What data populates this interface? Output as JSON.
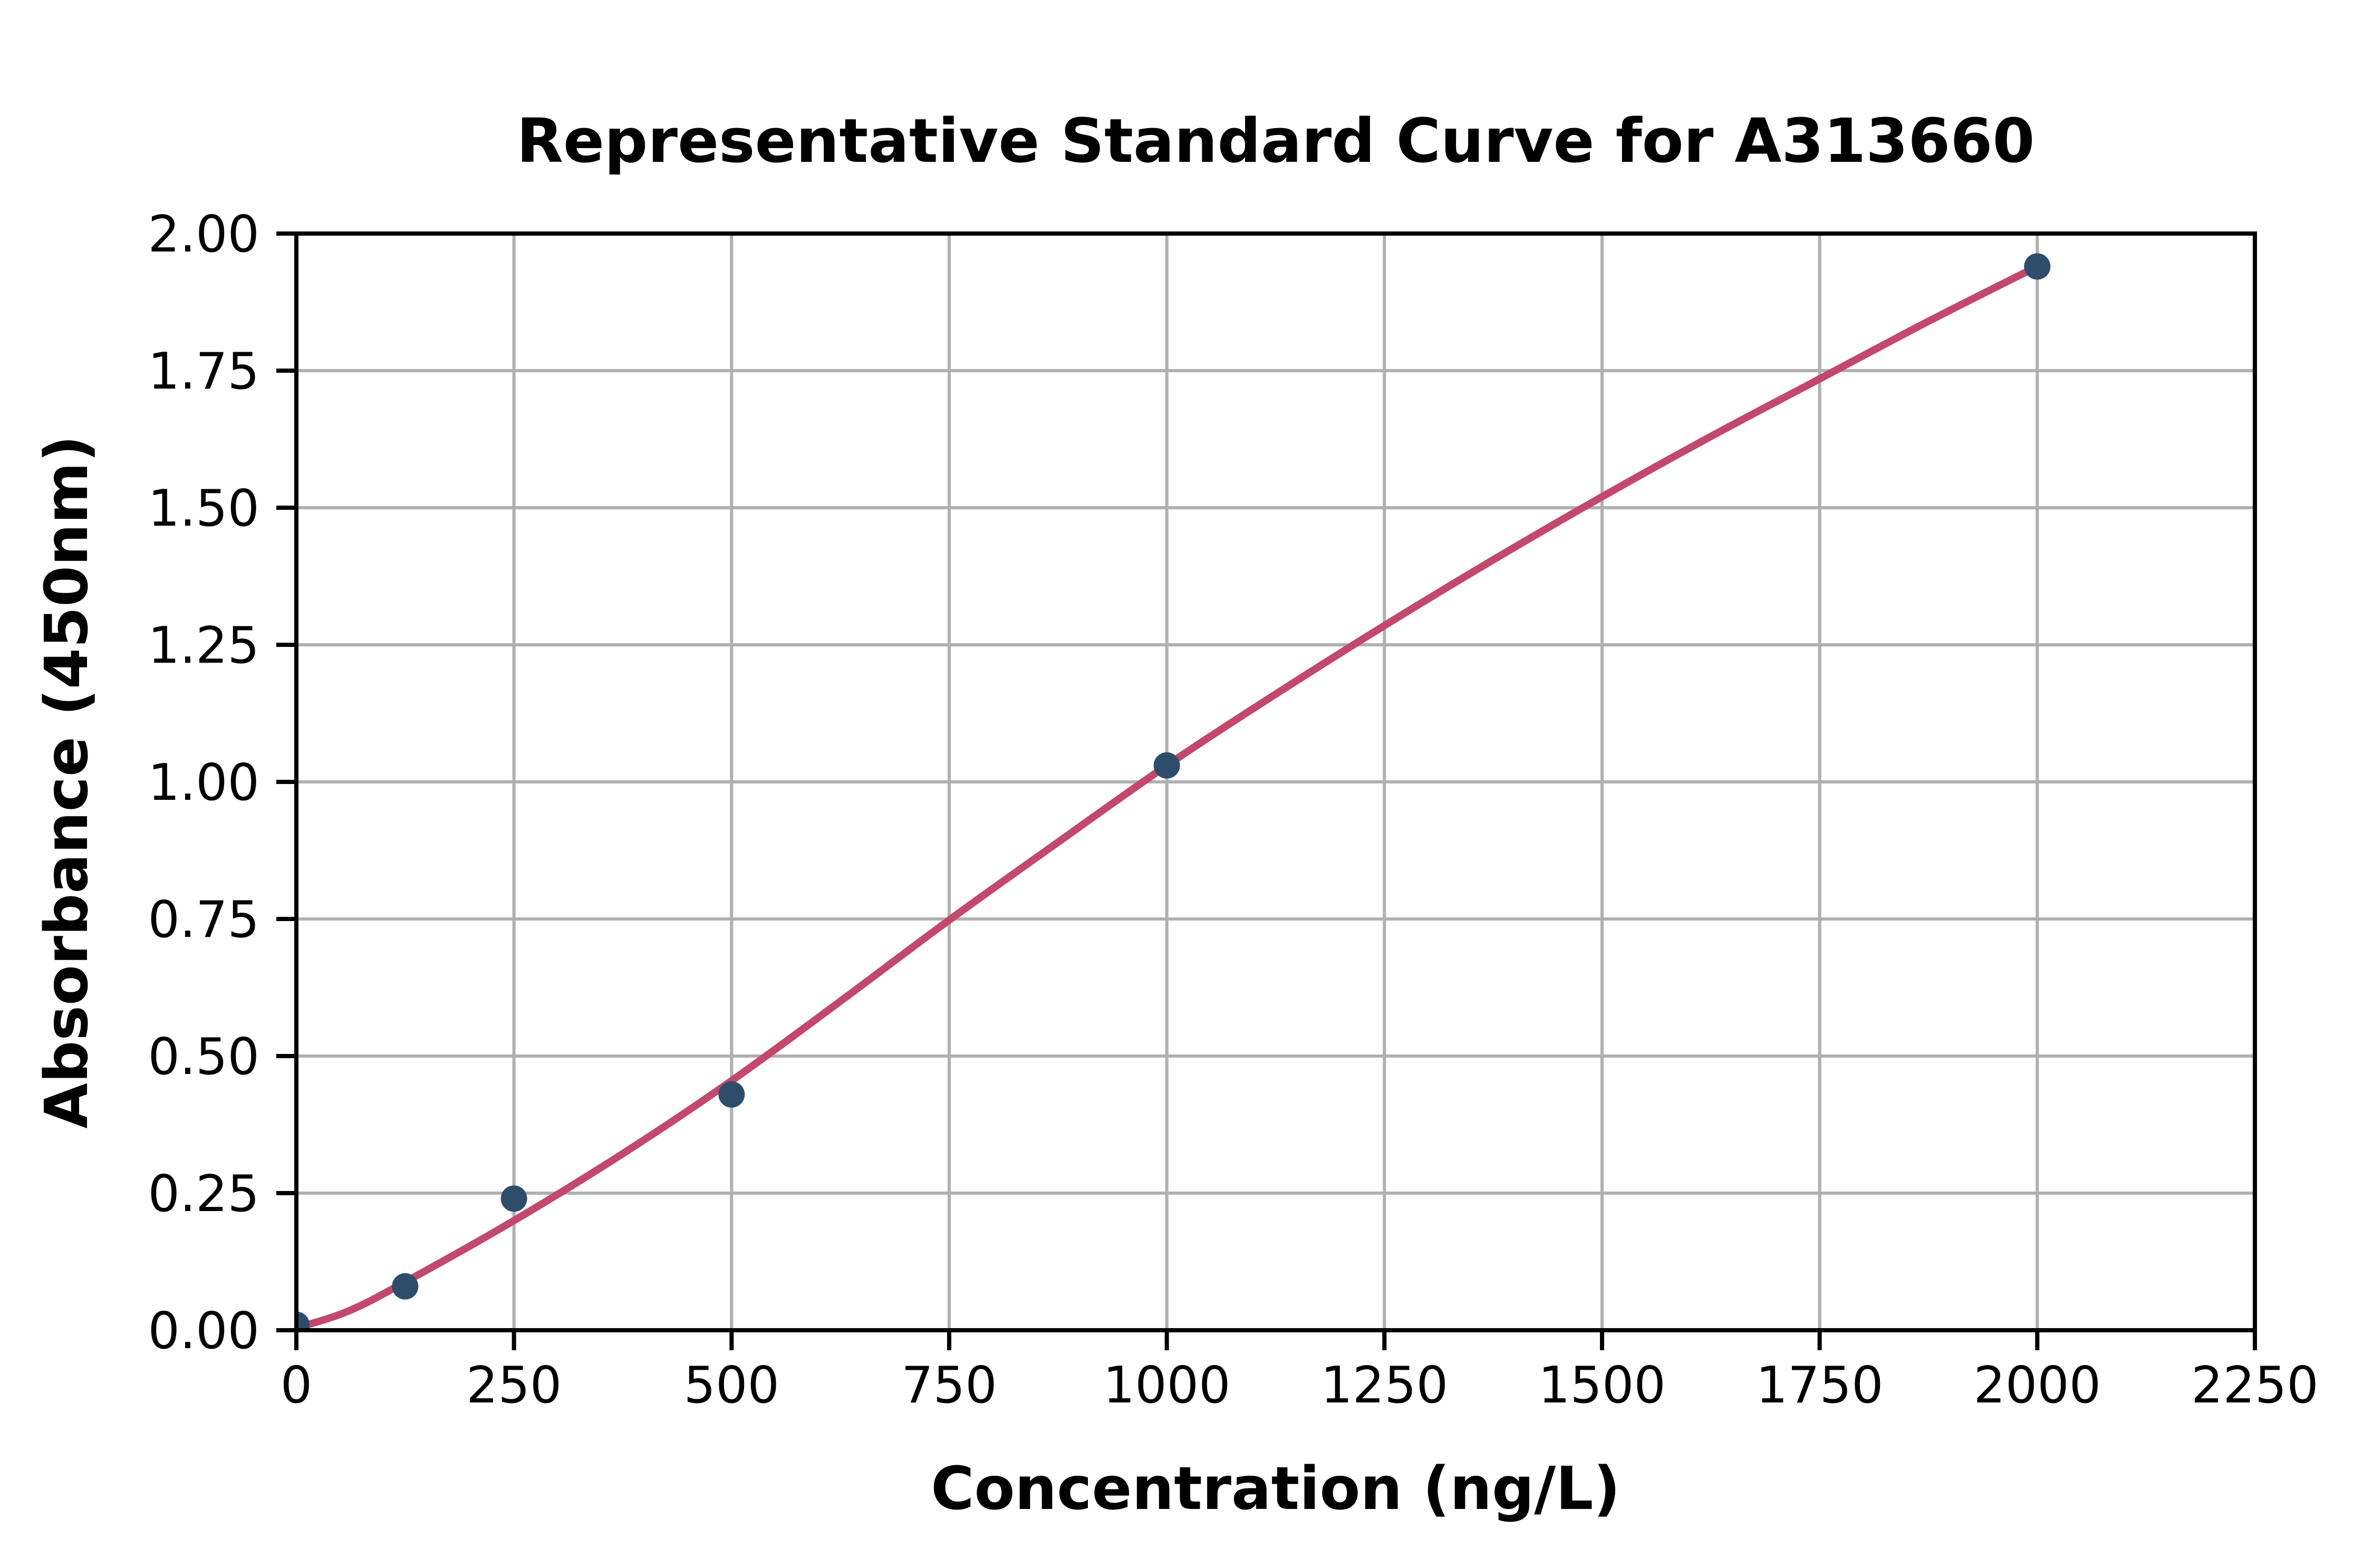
{
  "chart_data": {
    "type": "scatter",
    "title": "Representative Standard Curve for A313660",
    "xlabel": "Concentration (ng/L)",
    "ylabel": "Absorbance (450nm)",
    "xlim": [
      0,
      2250
    ],
    "ylim": [
      0,
      2.0
    ],
    "x_ticks": [
      0,
      250,
      500,
      750,
      1000,
      1250,
      1500,
      1750,
      2000,
      2250
    ],
    "x_tick_labels": [
      "0",
      "250",
      "500",
      "750",
      "1000",
      "1250",
      "1500",
      "1750",
      "2000",
      "2250"
    ],
    "y_ticks": [
      0,
      0.25,
      0.5,
      0.75,
      1.0,
      1.25,
      1.5,
      1.75,
      2.0
    ],
    "y_tick_labels": [
      "0.00",
      "0.25",
      "0.50",
      "0.75",
      "1.00",
      "1.25",
      "1.50",
      "1.75",
      "2.00"
    ],
    "grid": true,
    "legend_position": "none",
    "points": [
      {
        "x": 0,
        "y": 0.01
      },
      {
        "x": 125,
        "y": 0.08
      },
      {
        "x": 250,
        "y": 0.24
      },
      {
        "x": 500,
        "y": 0.43
      },
      {
        "x": 1000,
        "y": 1.03
      },
      {
        "x": 2000,
        "y": 1.94
      }
    ],
    "fit_curve_samples": [
      [
        0,
        0.004
      ],
      [
        60,
        0.035
      ],
      [
        125,
        0.088
      ],
      [
        250,
        0.2
      ],
      [
        375,
        0.322
      ],
      [
        500,
        0.455
      ],
      [
        625,
        0.6
      ],
      [
        750,
        0.748
      ],
      [
        875,
        0.89
      ],
      [
        1000,
        1.03
      ],
      [
        1125,
        1.16
      ],
      [
        1250,
        1.285
      ],
      [
        1375,
        1.405
      ],
      [
        1500,
        1.52
      ],
      [
        1625,
        1.63
      ],
      [
        1750,
        1.735
      ],
      [
        1875,
        1.84
      ],
      [
        2000,
        1.94
      ]
    ],
    "colors": {
      "curve": "#c3486d",
      "points": "#2e4d6b",
      "grid": "#b0b0b0",
      "axis": "#000000",
      "text": "#000000"
    }
  }
}
